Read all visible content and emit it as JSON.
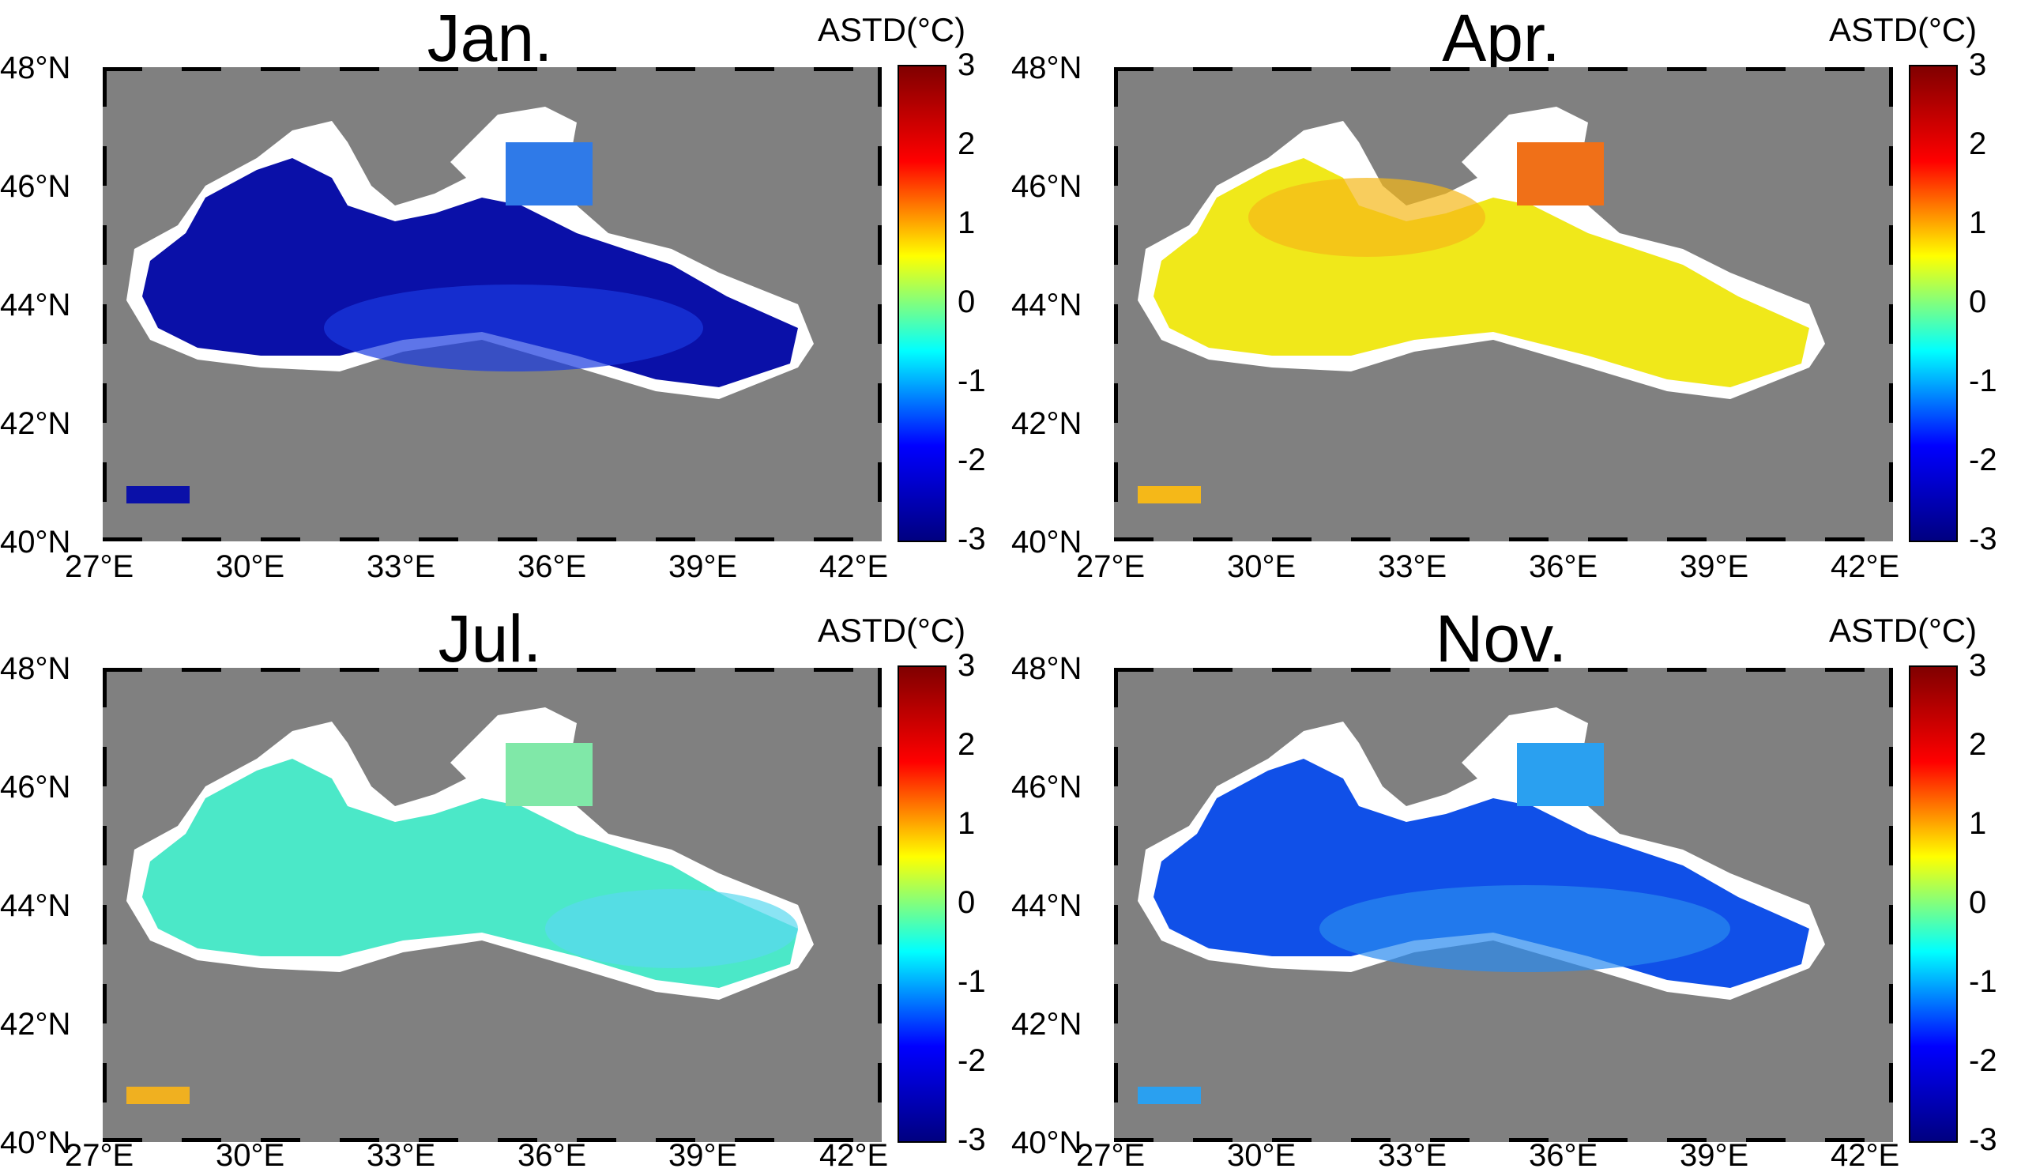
{
  "colorbar": {
    "label": "ASTD(°C)",
    "ticks": [
      "3",
      "2",
      "1",
      "0",
      "-1",
      "-2",
      "-3"
    ],
    "min": -3,
    "max": 3
  },
  "axes": {
    "lon_ticks": [
      "27°E",
      "30°E",
      "33°E",
      "36°E",
      "39°E",
      "42°E"
    ],
    "lat_ticks": [
      "48°N",
      "46°N",
      "44°N",
      "42°N",
      "40°N"
    ]
  },
  "colors": {
    "land": "#808080",
    "coast": "#ffffff",
    "lakes": "#000000"
  },
  "panels": [
    {
      "title": "Jan.",
      "fill": "#0a10a8",
      "blob": "#1a3ae0",
      "kerch": "#2f7ae8"
    },
    {
      "title": "Apr.",
      "fill": "#f0e81a",
      "blob": "#f5b818",
      "kerch": "#f07018"
    },
    {
      "title": "Jul.",
      "fill": "#4be8c8",
      "blob": "#5ad8f0",
      "kerch": "#80e8a8"
    },
    {
      "title": "Nov.",
      "fill": "#1050e8",
      "blob": "#2a8af0",
      "kerch": "#2aa0f0"
    }
  ]
}
